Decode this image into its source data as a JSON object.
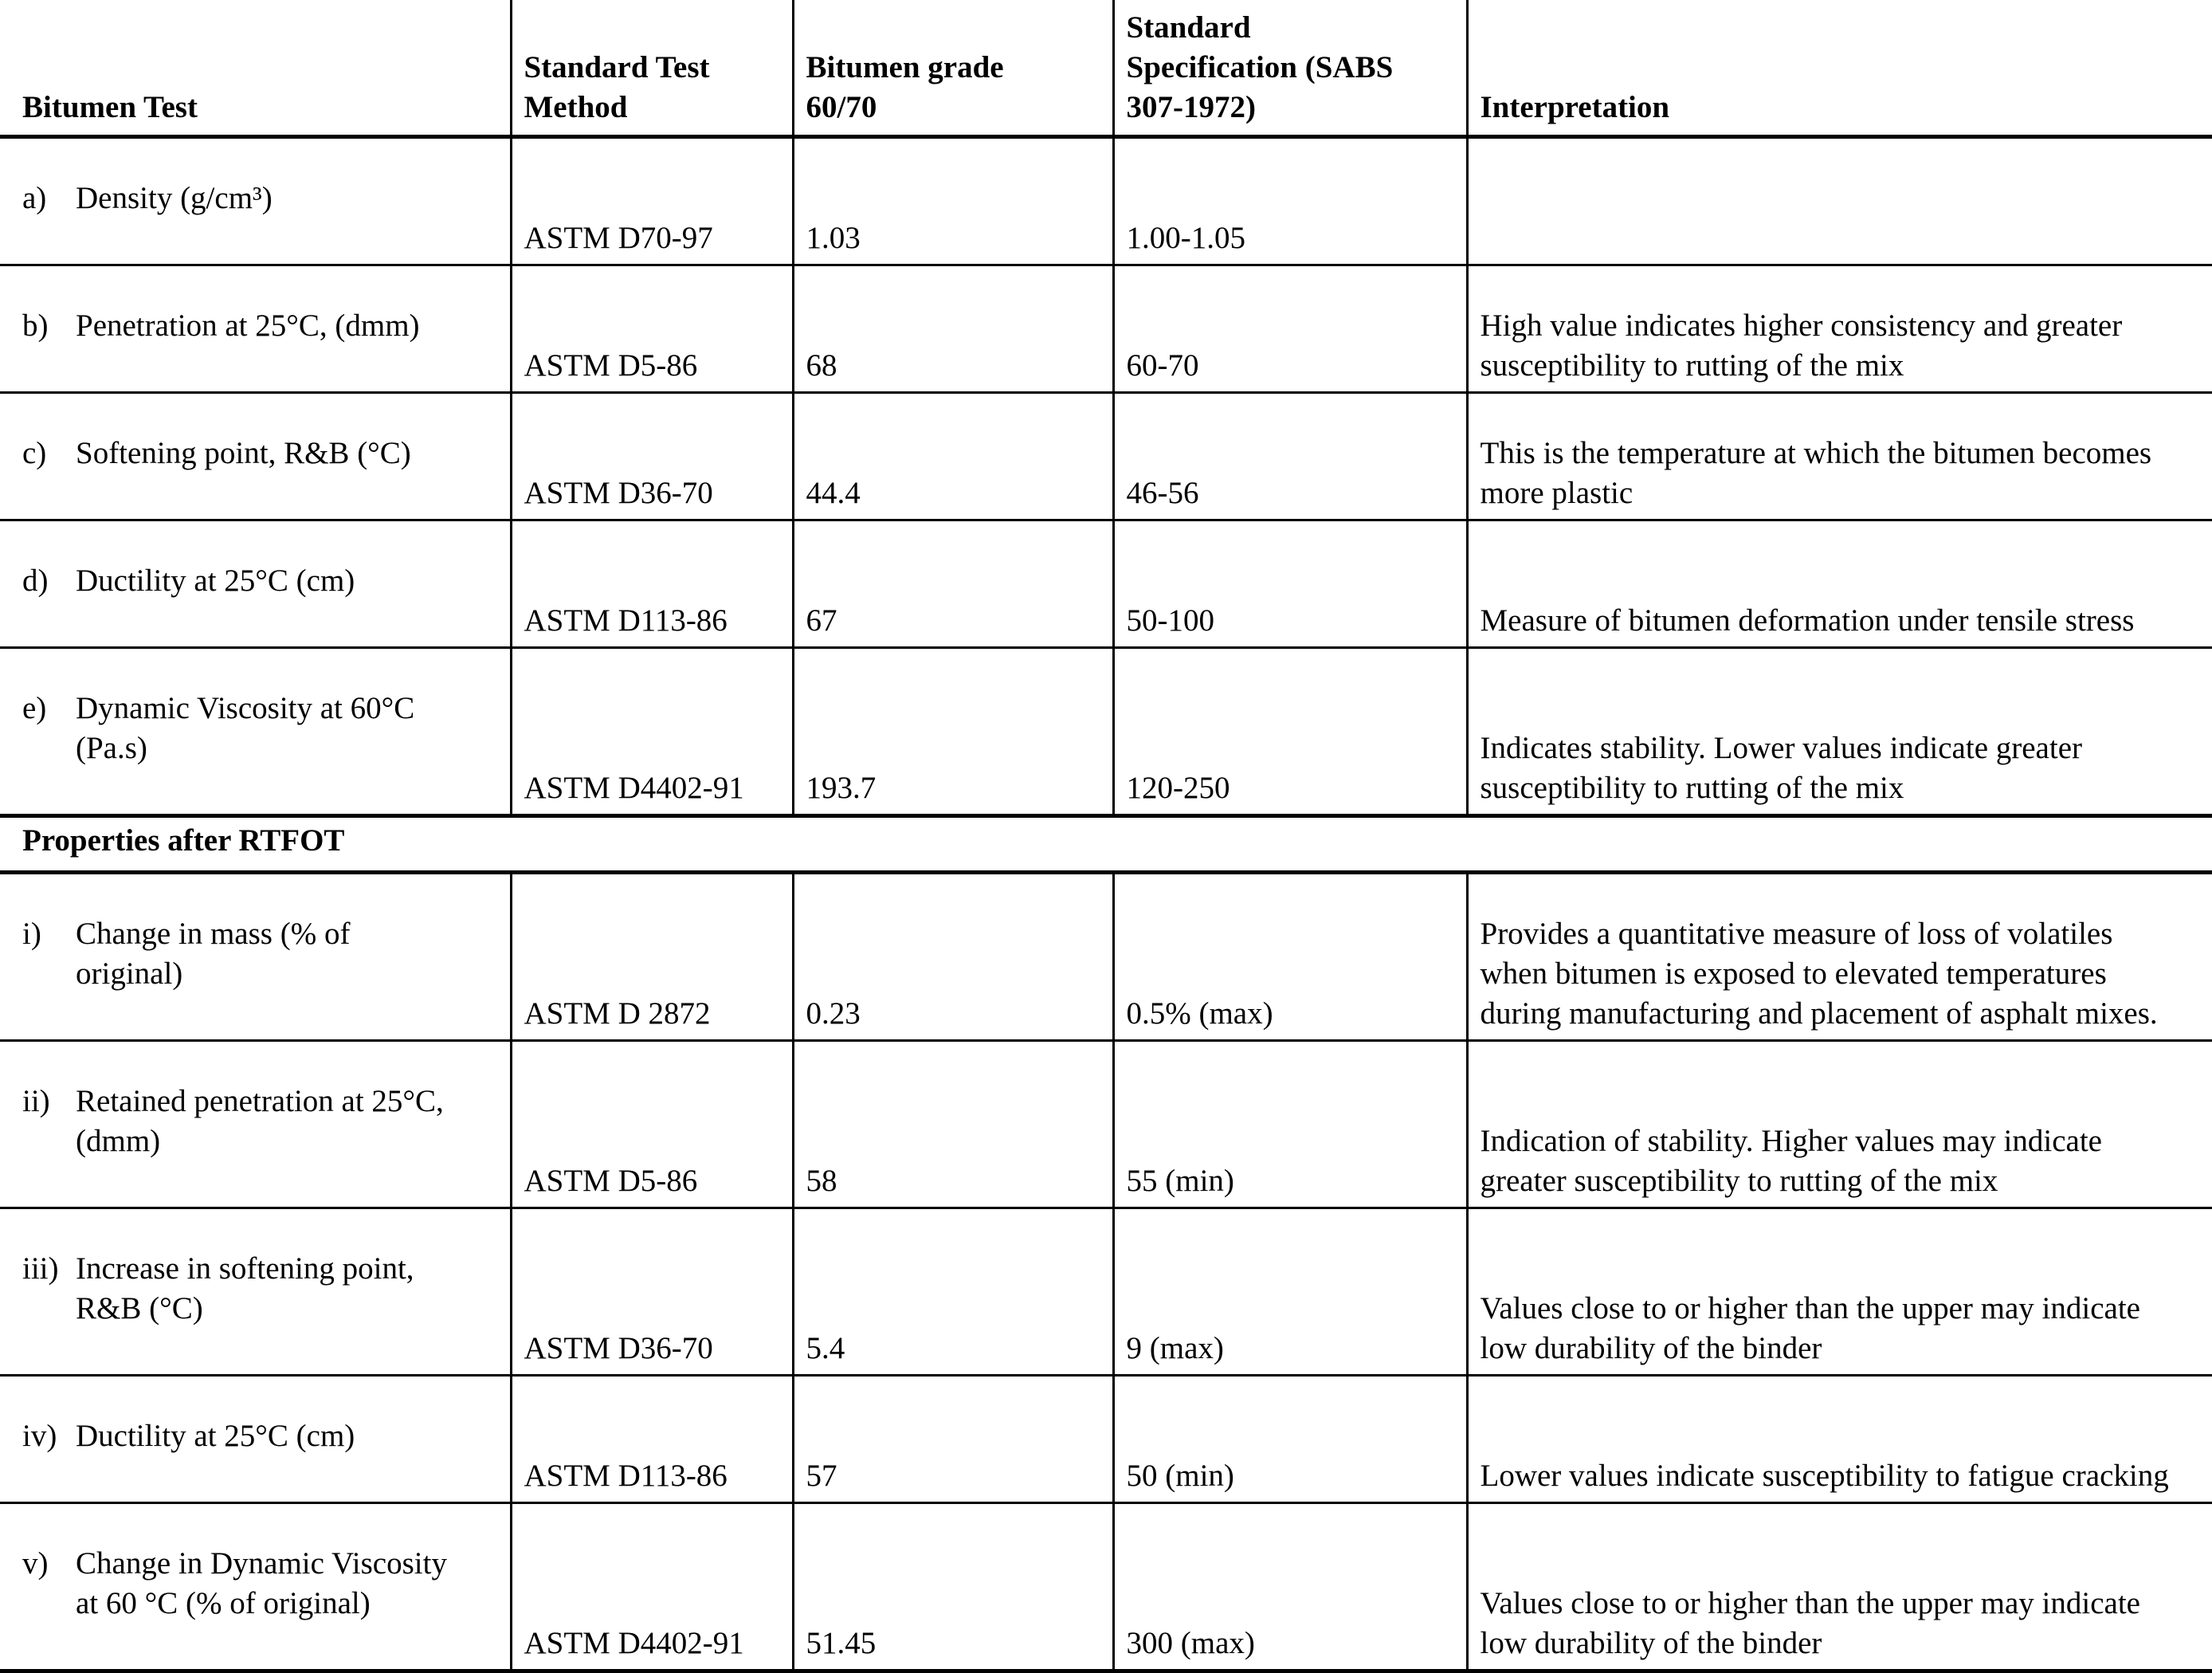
{
  "table": {
    "headers": {
      "test": "Bitumen Test",
      "method": "Standard Test\nMethod",
      "grade": "Bitumen grade\n60/70",
      "spec": "Standard\nSpecification (SABS\n307-1972)",
      "interpretation": "Interpretation"
    },
    "section_header": "Properties after RTFOT",
    "rows": [
      {
        "marker": "a)",
        "test": "Density (g/cm³)",
        "method": "ASTM D70-97",
        "grade": "1.03",
        "spec": "1.00-1.05",
        "interpretation": ""
      },
      {
        "marker": "b)",
        "test": "Penetration at 25°C, (dmm)",
        "method": "ASTM D5-86",
        "grade": "68",
        "spec": "60-70",
        "interpretation": "High value indicates higher consistency and greater\nsusceptibility to rutting of the mix"
      },
      {
        "marker": "c)",
        "test": "Softening point, R&B (°C)",
        "method": "ASTM D36-70",
        "grade": "44.4",
        "spec": "46-56",
        "interpretation": "This is the temperature at which the bitumen becomes\nmore plastic"
      },
      {
        "marker": "d)",
        "test": "Ductility at 25°C (cm)",
        "method": "ASTM D113-86",
        "grade": "67",
        "spec": "50-100",
        "interpretation": "Measure of bitumen deformation under tensile stress"
      },
      {
        "marker": "e)",
        "test": "Dynamic Viscosity at 60°C\n(Pa.s)",
        "method": "ASTM D4402-91",
        "grade": "193.7",
        "spec": "120-250",
        "interpretation": "Indicates stability. Lower values indicate greater\nsusceptibility to rutting of the mix"
      },
      {
        "marker": "i)",
        "test": "Change in mass (% of\noriginal)",
        "method": "ASTM D 2872",
        "grade": "0.23",
        "spec": "0.5% (max)",
        "interpretation": "Provides a quantitative measure of loss of volatiles\nwhen bitumen is exposed to elevated temperatures\nduring manufacturing and placement of asphalt mixes."
      },
      {
        "marker": "ii)",
        "test": "Retained penetration at 25°C,\n(dmm)",
        "method": "ASTM D5-86",
        "grade": "58",
        "spec": "55 (min)",
        "interpretation": "Indication of stability. Higher values may indicate\ngreater susceptibility to rutting of the mix"
      },
      {
        "marker": "iii)",
        "test": "Increase in softening point,\nR&B (°C)",
        "method": "ASTM D36-70",
        "grade": "5.4",
        "spec": "9 (max)",
        "interpretation": "Values close to or higher than the upper  may indicate\nlow durability of the binder"
      },
      {
        "marker": "iv)",
        "test": "Ductility at 25°C (cm)",
        "method": "ASTM D113-86",
        "grade": "57",
        "spec": "50 (min)",
        "interpretation": "Lower values indicate susceptibility to fatigue cracking"
      },
      {
        "marker": "v)",
        "test": "Change in Dynamic Viscosity\nat 60 °C (% of original)",
        "method": "ASTM D4402-91",
        "grade": "51.45",
        "spec": "300 (max)",
        "interpretation": "Values close to or higher than the upper  may indicate\nlow durability of the binder"
      }
    ]
  }
}
